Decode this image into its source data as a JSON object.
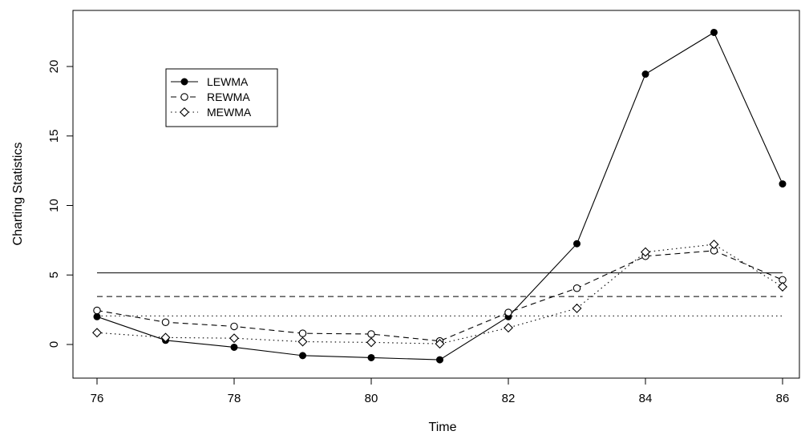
{
  "chart_data": {
    "type": "line",
    "title": "",
    "xlabel": "Time",
    "ylabel": "Charting Statistics",
    "xlim": [
      75.6,
      86.2
    ],
    "ylim": [
      -2.5,
      23.5
    ],
    "xticks": [
      76,
      78,
      80,
      82,
      84,
      86
    ],
    "yticks": [
      0,
      5,
      10,
      15,
      20
    ],
    "grid": false,
    "legend_position": "top-left",
    "x": [
      76,
      77,
      78,
      79,
      80,
      81,
      82,
      83,
      84,
      85,
      86
    ],
    "series": [
      {
        "name": "LEWMA",
        "line_style": "solid",
        "marker": "filled-circle",
        "values": [
          2.0,
          0.3,
          -0.2,
          -0.8,
          -0.95,
          -1.1,
          2.0,
          7.25,
          19.45,
          22.45,
          11.55
        ]
      },
      {
        "name": "REWMA",
        "line_style": "dashed",
        "marker": "open-circle",
        "values": [
          2.45,
          1.6,
          1.3,
          0.8,
          0.75,
          0.25,
          2.3,
          4.05,
          6.35,
          6.75,
          4.65
        ]
      },
      {
        "name": "MEWMA",
        "line_style": "dotted",
        "marker": "open-diamond",
        "values": [
          0.85,
          0.5,
          0.45,
          0.2,
          0.15,
          0.05,
          1.2,
          2.6,
          6.65,
          7.2,
          4.15
        ]
      }
    ],
    "control_limits": [
      {
        "series": "LEWMA",
        "line_style": "solid",
        "value": 5.15
      },
      {
        "series": "REWMA",
        "line_style": "dashed",
        "value": 3.45
      },
      {
        "series": "MEWMA",
        "line_style": "dotted",
        "value": 2.05
      }
    ]
  }
}
